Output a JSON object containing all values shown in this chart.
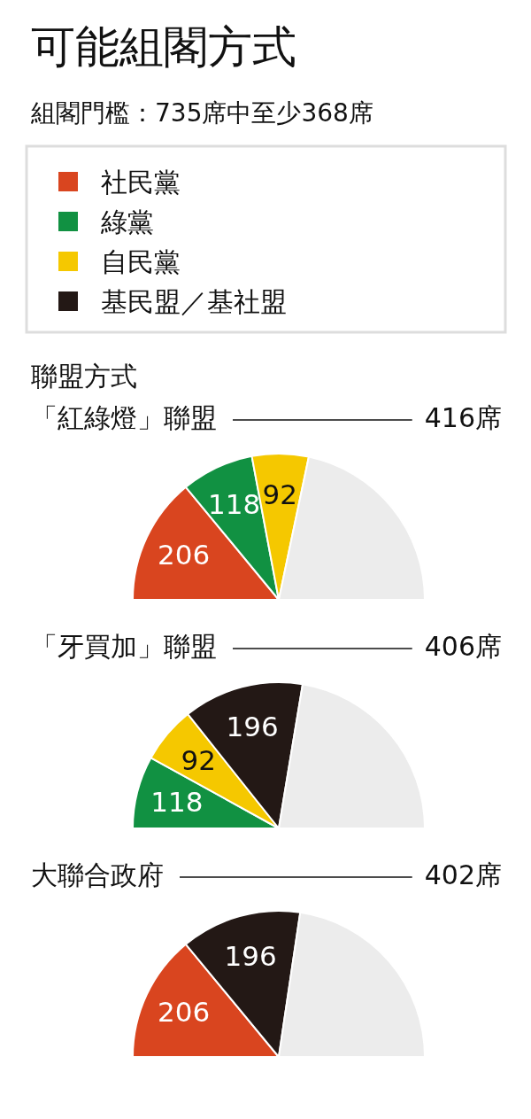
{
  "chart_data": [
    {
      "type": "other",
      "title": "可能組閣方式",
      "subtitle": "組閣門檻：735席中至少368席",
      "categories": [
        "社民黨",
        "綠黨",
        "自民黨",
        "基民盟／基社盟"
      ],
      "colors": [
        "#d9451f",
        "#119142",
        "#f5c800",
        "#231815"
      ],
      "annotations": [
        "聯盟方式"
      ]
    },
    {
      "type": "pie",
      "title": "「紅綠燈」聯盟",
      "categories": [
        null,
        null,
        null,
        null
      ],
      "values": [
        206,
        118,
        92,
        319
      ],
      "colors": [
        "#d9451f",
        "#119142",
        "#f5c800",
        "#ececec"
      ],
      "value_labels": [
        "206",
        "118",
        "92",
        null
      ],
      "annotations": [
        "416席"
      ]
    },
    {
      "type": "pie",
      "title": "「牙買加」聯盟",
      "categories": [
        null,
        null,
        null,
        null
      ],
      "values": [
        118,
        92,
        196,
        329
      ],
      "colors": [
        "#119142",
        "#f5c800",
        "#231815",
        "#ececec"
      ],
      "value_labels": [
        "118",
        "92",
        "196",
        null
      ],
      "annotations": [
        "406席"
      ]
    },
    {
      "type": "pie",
      "title": "大聯合政府",
      "categories": [
        null,
        null,
        null
      ],
      "values": [
        206,
        196,
        333
      ],
      "colors": [
        "#d9451f",
        "#231815",
        "#ececec"
      ],
      "value_labels": [
        "206",
        "196",
        null
      ],
      "annotations": [
        "402席"
      ]
    }
  ]
}
